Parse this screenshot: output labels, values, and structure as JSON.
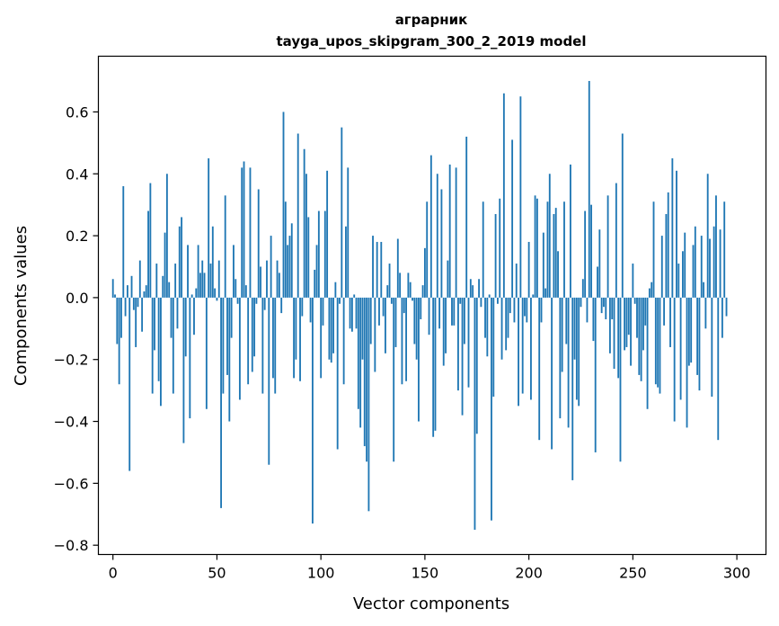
{
  "chart_data": {
    "type": "bar",
    "title_line1": "аграрник",
    "title_line2": "tayga_upos_skipgram_300_2_2019 model",
    "xlabel": "Vector components",
    "ylabel": "Components values",
    "xlim": [
      -7,
      314
    ],
    "ylim": [
      -0.83,
      0.78
    ],
    "xticks": [
      0,
      50,
      100,
      150,
      200,
      250,
      300
    ],
    "xtick_labels": [
      "0",
      "50",
      "100",
      "150",
      "200",
      "250",
      "300"
    ],
    "yticks": [
      -0.8,
      -0.6,
      -0.4,
      -0.2,
      0.0,
      0.2,
      0.4,
      0.6
    ],
    "ytick_labels": [
      "−0.8",
      "−0.6",
      "−0.4",
      "−0.2",
      "0.0",
      "0.2",
      "0.4",
      "0.6"
    ],
    "bar_color": "#1f77b4",
    "bar_width": 0.8,
    "x_start": 0,
    "values": [
      0.06,
      0.01,
      -0.15,
      -0.28,
      -0.13,
      0.36,
      -0.06,
      0.04,
      -0.56,
      0.07,
      -0.04,
      -0.16,
      -0.03,
      0.12,
      -0.11,
      0.02,
      0.04,
      0.28,
      0.37,
      -0.31,
      -0.17,
      0.11,
      -0.27,
      -0.35,
      0.07,
      0.21,
      0.4,
      0.05,
      -0.13,
      -0.31,
      0.11,
      -0.1,
      0.23,
      0.26,
      -0.47,
      -0.19,
      0.17,
      -0.39,
      0.01,
      -0.12,
      0.03,
      0.17,
      0.08,
      0.12,
      0.08,
      -0.36,
      0.45,
      0.11,
      0.23,
      0.03,
      -0.01,
      0.12,
      -0.68,
      -0.31,
      0.33,
      -0.25,
      -0.4,
      -0.13,
      0.17,
      0.06,
      -0.02,
      -0.33,
      0.42,
      0.44,
      0.04,
      -0.28,
      0.42,
      -0.24,
      -0.19,
      -0.02,
      0.35,
      0.1,
      -0.31,
      -0.04,
      0.12,
      -0.54,
      0.2,
      -0.26,
      -0.31,
      0.12,
      0.08,
      -0.05,
      0.6,
      0.31,
      0.17,
      0.2,
      0.24,
      -0.26,
      -0.2,
      0.53,
      -0.27,
      -0.06,
      0.48,
      0.4,
      0.26,
      -0.08,
      -0.73,
      0.09,
      0.17,
      0.28,
      -0.26,
      -0.09,
      0.28,
      0.41,
      -0.2,
      -0.21,
      -0.18,
      0.05,
      -0.49,
      -0.02,
      0.55,
      -0.28,
      0.23,
      0.42,
      -0.1,
      -0.11,
      0.01,
      -0.1,
      -0.36,
      -0.42,
      -0.2,
      -0.48,
      -0.53,
      -0.69,
      -0.15,
      0.2,
      -0.24,
      0.18,
      -0.09,
      0.18,
      -0.06,
      -0.18,
      0.04,
      0.11,
      -0.02,
      -0.53,
      -0.16,
      0.19,
      0.08,
      -0.28,
      -0.05,
      -0.27,
      0.08,
      0.05,
      -0.01,
      -0.15,
      -0.2,
      -0.4,
      -0.07,
      0.04,
      0.16,
      0.31,
      -0.12,
      0.46,
      -0.45,
      -0.43,
      0.4,
      -0.1,
      0.35,
      -0.22,
      -0.18,
      0.12,
      0.43,
      -0.09,
      -0.09,
      0.42,
      -0.3,
      -0.02,
      -0.38,
      -0.15,
      0.52,
      -0.29,
      0.06,
      0.04,
      -0.75,
      -0.44,
      0.06,
      -0.03,
      0.31,
      -0.13,
      -0.19,
      0.01,
      -0.72,
      -0.32,
      0.27,
      -0.02,
      0.32,
      -0.2,
      0.66,
      -0.17,
      -0.13,
      -0.05,
      0.51,
      -0.08,
      0.11,
      -0.35,
      0.65,
      -0.31,
      -0.06,
      -0.08,
      0.18,
      -0.33,
      0.01,
      0.33,
      0.32,
      -0.46,
      -0.08,
      0.21,
      0.03,
      0.31,
      0.4,
      -0.49,
      0.27,
      0.29,
      0.15,
      -0.39,
      -0.24,
      0.31,
      -0.15,
      -0.42,
      0.43,
      -0.59,
      -0.2,
      -0.33,
      -0.35,
      -0.03,
      0.06,
      0.28,
      -0.08,
      0.7,
      0.3,
      -0.14,
      -0.5,
      0.1,
      0.22,
      -0.05,
      -0.03,
      -0.07,
      0.33,
      -0.18,
      -0.07,
      -0.23,
      0.37,
      -0.26,
      -0.53,
      0.53,
      -0.17,
      -0.16,
      -0.12,
      -0.22,
      0.11,
      -0.02,
      -0.13,
      -0.25,
      -0.27,
      -0.17,
      -0.09,
      -0.36,
      0.03,
      0.05,
      0.31,
      -0.28,
      -0.29,
      -0.31,
      0.2,
      -0.09,
      0.27,
      0.34,
      -0.16,
      0.45,
      -0.4,
      0.41,
      0.11,
      -0.33,
      0.15,
      0.21,
      -0.42,
      -0.22,
      -0.21,
      0.17,
      0.23,
      -0.25,
      -0.3,
      0.2,
      0.05,
      -0.1,
      0.4,
      0.19,
      -0.32,
      0.23,
      0.33,
      -0.46,
      0.22,
      -0.13,
      0.31,
      -0.06
    ]
  }
}
